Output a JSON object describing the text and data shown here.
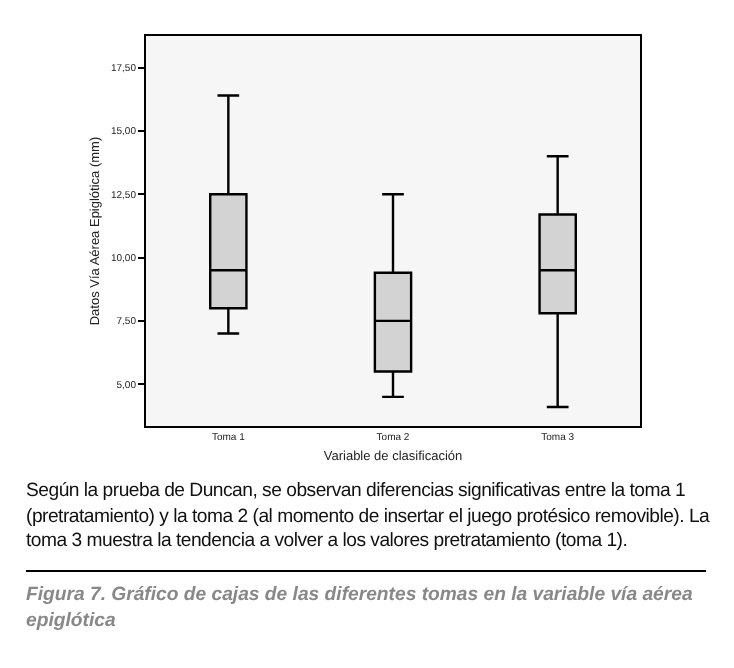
{
  "chart_data": {
    "type": "box",
    "xlabel": "Variable de clasificación",
    "ylabel": "Datos Vía Aérea Epiglótica (mm)",
    "categories": [
      "Toma 1",
      "Toma 2",
      "Toma 3"
    ],
    "boxes": [
      {
        "low": 7.0,
        "q1": 8.0,
        "median": 9.5,
        "q3": 12.5,
        "high": 16.4
      },
      {
        "low": 4.5,
        "q1": 5.5,
        "median": 7.5,
        "q3": 9.4,
        "high": 12.5
      },
      {
        "low": 4.1,
        "q1": 7.8,
        "median": 9.5,
        "q3": 11.7,
        "high": 14.0
      }
    ],
    "color": "#d3d3d3",
    "ylim": [
      3.35,
      18.75
    ],
    "yticks": [
      {
        "value": 5,
        "label": "5,00"
      },
      {
        "value": 7.5,
        "label": "7,50"
      },
      {
        "value": 10,
        "label": "10,00"
      },
      {
        "value": 12.5,
        "label": "12,50"
      },
      {
        "value": 15,
        "label": "15,00"
      },
      {
        "value": 17.5,
        "label": "17,50"
      }
    ],
    "grid": false,
    "legend": false,
    "annotations": [
      "Según la prueba de Duncan, se observan diferencias significativas entre la toma 1 (pretratamiento) y la toma 2 (al momento de insertar el juego protésico removible). La toma 3 muestra la tendencia a volver a los valores pretratamiento (toma 1).",
      "Figura 7. Gráfico de cajas de las diferentes tomas en la variable vía aérea epiglótica"
    ]
  }
}
